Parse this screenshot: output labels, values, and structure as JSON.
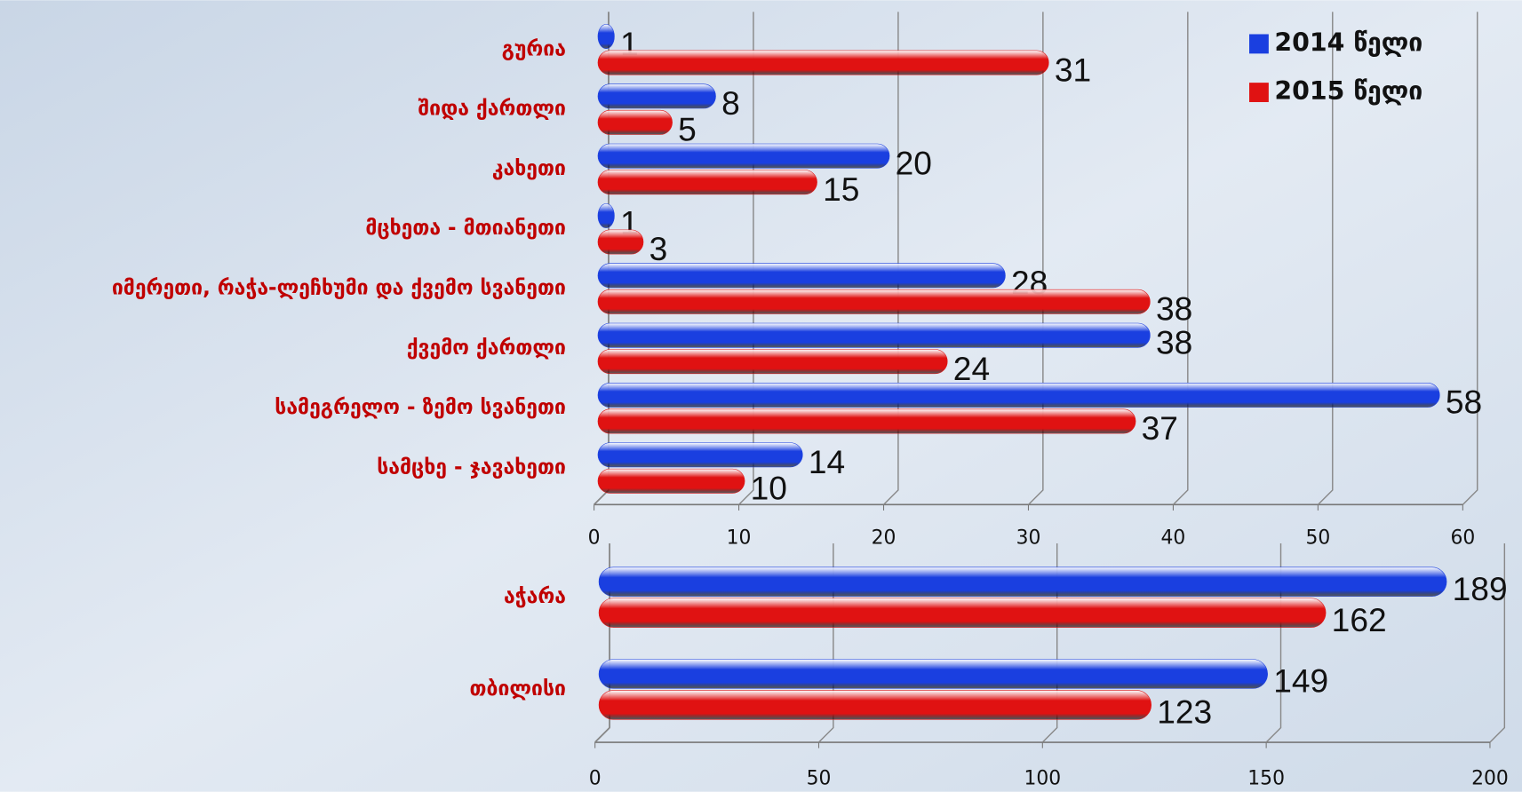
{
  "chart_data": [
    {
      "type": "bar",
      "orientation": "horizontal",
      "categories": [
        "გურია",
        "შიდა ქართლი",
        "კახეთი",
        "მცხეთა - მთიანეთი",
        "იმერეთი, რაჭა-ლეჩხუმი და ქვემო სვანეთი",
        "ქვემო ქართლი",
        "სამეგრელო - ზემო სვანეთი",
        "სამცხე - ჯავახეთი"
      ],
      "series": [
        {
          "name": "2014 წელი",
          "color": "#1a3fe0",
          "values": [
            1,
            8,
            20,
            1,
            28,
            38,
            58,
            14
          ]
        },
        {
          "name": "2015 წელი",
          "color": "#e01212",
          "values": [
            31,
            5,
            15,
            3,
            38,
            24,
            37,
            10
          ]
        }
      ],
      "xlim": [
        0,
        60
      ],
      "xticks": [
        0,
        10,
        20,
        30,
        40,
        50,
        60
      ],
      "grid": true,
      "legend": "top-right"
    },
    {
      "type": "bar",
      "orientation": "horizontal",
      "categories": [
        "აჭარა",
        "თბილისი"
      ],
      "series": [
        {
          "color": "#1a3fe0",
          "values": [
            189,
            149
          ]
        },
        {
          "color": "#e01212",
          "values": [
            162,
            123
          ]
        }
      ],
      "xlim": [
        0,
        200
      ],
      "xticks": [
        0,
        50,
        100,
        150,
        200
      ],
      "grid": true
    }
  ]
}
